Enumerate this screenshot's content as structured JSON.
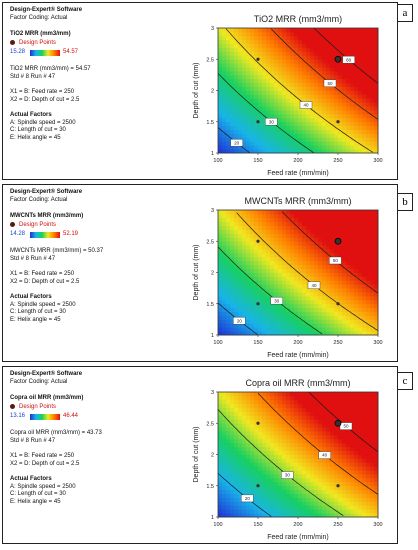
{
  "panels": [
    {
      "tag": "a",
      "software": "Design-Expert® Software",
      "factor_coding": "Factor Coding: Actual",
      "response_title": "TiO2 MRR (mm3/mm)",
      "design_points_label": "Design Points",
      "range_min": "15.28",
      "range_max": "54.57",
      "readout": "TiO2 MRR (mm3/mm) = 54.57",
      "std_run": "Std # 8 Run # 47",
      "x1": "X1 = B: Feed rate = 250",
      "x2": "X2 = D: Depth of cut = 2.5",
      "actual_factors": "Actual Factors",
      "factor_a": "A: Spindle speed = 2500",
      "factor_c": "C: Length of cut = 30",
      "factor_e": "E: Helix angle = 45",
      "chart_data": {
        "type": "contour",
        "title": "TiO2 MRR (mm3/mm)",
        "xlabel": "Feed rate (mm/min)",
        "ylabel": "Depth of cut (mm)",
        "xlim": [
          100,
          300
        ],
        "ylim": [
          1,
          3
        ],
        "xticks": [
          "100",
          "150",
          "200",
          "250",
          "300"
        ],
        "yticks": [
          "1",
          "1.5",
          "2",
          "2.5",
          "3"
        ],
        "contour_levels": [
          20,
          30,
          40,
          50,
          60
        ],
        "design_points": [
          [
            150,
            1.5
          ],
          [
            150,
            2.5
          ],
          [
            250,
            1.5
          ],
          [
            250,
            2.5
          ]
        ],
        "highlighted_point": [
          250,
          2.5
        ],
        "response_range": [
          15.28,
          54.57
        ]
      }
    },
    {
      "tag": "b",
      "software": "Design-Expert® Software",
      "factor_coding": "Factor Coding: Actual",
      "response_title": "MWCNTs MRR (mm3/mm)",
      "design_points_label": "Design Points",
      "range_min": "14.28",
      "range_max": "52.19",
      "readout": "MWCNTs MRR (mm3/mm) = 50.37",
      "std_run": "Std # 8 Run # 47",
      "x1": "X1 = B: Feed rate = 250",
      "x2": "X2 = D: Depth of cut = 2.5",
      "actual_factors": "Actual Factors",
      "factor_a": "A: Spindle speed = 2500",
      "factor_c": "C: Length of cut = 30",
      "factor_e": "E: Helix angle = 45",
      "chart_data": {
        "type": "contour",
        "title": "MWCNTs MRR (mm3/mm)",
        "xlabel": "Feed rate (mm/min)",
        "ylabel": "Depth of cut (mm)",
        "xlim": [
          100,
          300
        ],
        "ylim": [
          1,
          3
        ],
        "xticks": [
          "100",
          "150",
          "200",
          "250",
          "300"
        ],
        "yticks": [
          "1",
          "1.5",
          "2",
          "2.5",
          "3"
        ],
        "contour_levels": [
          20,
          30,
          40,
          50
        ],
        "design_points": [
          [
            150,
            1.5
          ],
          [
            150,
            2.5
          ],
          [
            250,
            1.5
          ],
          [
            250,
            2.5
          ]
        ],
        "highlighted_point": [
          250,
          2.5
        ],
        "response_range": [
          14.28,
          52.19
        ]
      }
    },
    {
      "tag": "c",
      "software": "Design-Expert® Software",
      "factor_coding": "Factor Coding: Actual",
      "response_title": "Copra oil MRR (mm3/mm)",
      "design_points_label": "Design Points",
      "range_min": "13.16",
      "range_max": "46.44",
      "readout": "Copra oil MRR (mm3/mm) = 43.73",
      "std_run": "Std # 8 Run # 47",
      "x1": "X1 = B: Feed rate = 250",
      "x2": "X2 = D: Depth of cut = 2.5",
      "actual_factors": "Actual Factors",
      "factor_a": "A: Spindle speed = 2500",
      "factor_c": "C: Length of cut = 30",
      "factor_e": "E: Helix angle = 45",
      "chart_data": {
        "type": "contour",
        "title": "Copra oil  MRR (mm3/mm)",
        "xlabel": "Feed rate (mm/min)",
        "ylabel": "Depth of cut (mm)",
        "xlim": [
          100,
          300
        ],
        "ylim": [
          1,
          3
        ],
        "xticks": [
          "100",
          "150",
          "200",
          "250",
          "300"
        ],
        "yticks": [
          "1",
          "1.5",
          "2",
          "2.5",
          "3"
        ],
        "contour_levels": [
          20,
          30,
          40,
          50
        ],
        "design_points": [
          [
            150,
            1.5
          ],
          [
            150,
            2.5
          ],
          [
            250,
            1.5
          ],
          [
            250,
            2.5
          ]
        ],
        "highlighted_point": [
          250,
          2.5
        ],
        "response_range": [
          13.16,
          46.44
        ]
      }
    }
  ]
}
